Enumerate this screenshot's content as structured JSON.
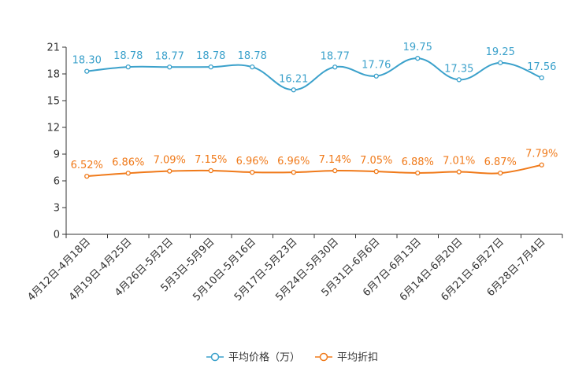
{
  "chart_data": {
    "type": "line",
    "categories": [
      "4月12日-4月18日",
      "4月19日-4月25日",
      "4月26日-5月2日",
      "5月3日-5月9日",
      "5月10日-5月16日",
      "5月17日-5月23日",
      "5月24日-5月30日",
      "5月31日-6月6日",
      "6月7日-6月13日",
      "6月14日-6月20日",
      "6月21日-6月27日",
      "6月28日-7月4日"
    ],
    "ylim": [
      0,
      21
    ],
    "yticks": [
      "0",
      "3",
      "6",
      "9",
      "12",
      "15",
      "18",
      "21"
    ],
    "series": [
      {
        "name": "平均价格（万）",
        "color": "#3ba1cb",
        "values": [
          18.3,
          18.78,
          18.77,
          18.78,
          18.78,
          16.21,
          18.77,
          17.76,
          19.75,
          17.35,
          19.25,
          17.56
        ],
        "labels": [
          "18.30",
          "18.78",
          "18.77",
          "18.78",
          "18.78",
          "16.21",
          "18.77",
          "17.76",
          "19.75",
          "17.35",
          "19.25",
          "17.56"
        ]
      },
      {
        "name": "平均折扣",
        "color": "#f07a1a",
        "values": [
          6.52,
          6.86,
          7.09,
          7.15,
          6.96,
          6.96,
          7.14,
          7.05,
          6.88,
          7.01,
          6.87,
          7.79
        ],
        "labels": [
          "6.52%",
          "6.86%",
          "7.09%",
          "7.15%",
          "6.96%",
          "6.96%",
          "7.14%",
          "7.05%",
          "6.88%",
          "7.01%",
          "6.87%",
          "7.79%"
        ]
      }
    ],
    "legend_position": "bottom-center",
    "grid": false
  }
}
